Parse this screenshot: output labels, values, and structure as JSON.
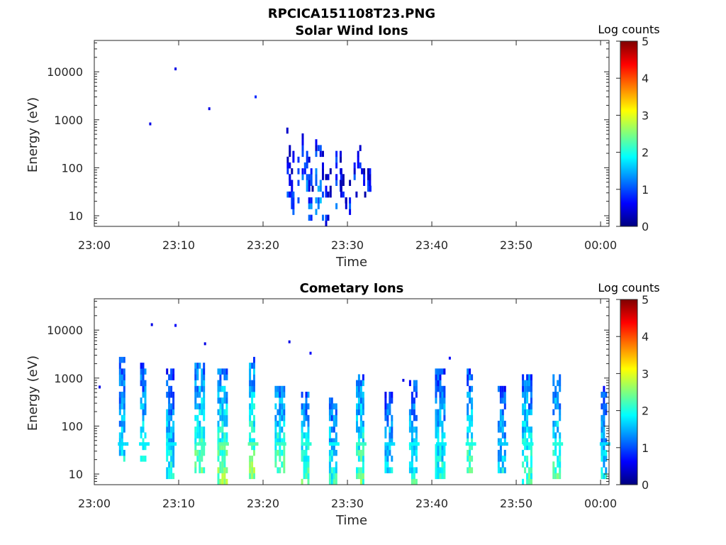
{
  "figure": {
    "title": "RPCICA151108T23.PNG"
  },
  "chart_data": [
    {
      "type": "heatmap",
      "title": "Solar Wind Ions",
      "xlabel": "Time",
      "ylabel": "Energy (eV)",
      "y_scale": "log",
      "ylim": [
        6,
        45000
      ],
      "xlim": [
        "23:00",
        "00:01"
      ],
      "x_ticks": [
        "23:00",
        "23:10",
        "23:20",
        "23:30",
        "23:40",
        "23:50",
        "00:00"
      ],
      "y_ticks": [
        "10",
        "100",
        "1000",
        "10000"
      ],
      "colorbar": {
        "label": "Log counts",
        "range": [
          0,
          5
        ],
        "ticks": [
          "0",
          "1",
          "2",
          "3",
          "4",
          "5"
        ],
        "colormap": "jet"
      },
      "bursts": [
        {
          "t": 23.0,
          "e": [
            580,
            600
          ],
          "c": 0.5
        },
        {
          "t": 23.05,
          "e": [
            17,
            290
          ],
          "c": 0.9
        },
        {
          "t": 23.3,
          "e": [
            12,
            95
          ],
          "c": 0.9
        },
        {
          "t": 23.6,
          "e": [
            12,
            310
          ],
          "c": 1.0
        },
        {
          "t": 24.2,
          "e": [
            12,
            280
          ],
          "c": 1.1
        },
        {
          "t": 24.7,
          "e": [
            13,
            520
          ],
          "c": 1.2
        },
        {
          "t": 25.1,
          "e": [
            17,
            520
          ],
          "c": 1.5
        },
        {
          "t": 25.6,
          "e": [
            6,
            200
          ],
          "c": 1.2
        },
        {
          "t": 26.0,
          "e": [
            30,
            40
          ],
          "c": 0.8
        },
        {
          "t": 26.3,
          "e": [
            11,
            440
          ],
          "c": 1.4
        },
        {
          "t": 26.7,
          "e": [
            11,
            420
          ],
          "c": 1.4
        },
        {
          "t": 27.1,
          "e": [
            8,
            300
          ],
          "c": 0.9
        },
        {
          "t": 27.6,
          "e": [
            6,
            120
          ],
          "c": 0.8
        },
        {
          "t": 28.0,
          "e": [
            6,
            90
          ],
          "c": 0.7
        },
        {
          "t": 28.4,
          "e": [
            20,
            290
          ],
          "c": 0.9
        },
        {
          "t": 28.7,
          "e": [
            12,
            460
          ],
          "c": 1.2
        },
        {
          "t": 29.2,
          "e": [
            30,
            230
          ],
          "c": 0.8
        },
        {
          "t": 29.4,
          "e": [
            17,
            110
          ],
          "c": 0.8
        },
        {
          "t": 29.7,
          "e": [
            17,
            22
          ],
          "c": 0.7
        },
        {
          "t": 29.85,
          "e": [
            12,
            22
          ],
          "c": 0.8
        },
        {
          "t": 30.3,
          "e": [
            12,
            60
          ],
          "c": 0.9
        },
        {
          "t": 30.85,
          "e": [
            30,
            300
          ],
          "c": 0.9
        },
        {
          "t": 31.2,
          "e": [
            19,
            30
          ],
          "c": 0.5
        },
        {
          "t": 31.4,
          "e": [
            90,
            420
          ],
          "c": 0.7
        },
        {
          "t": 31.85,
          "e": [
            28,
            100
          ],
          "c": 0.8
        },
        {
          "t": 32.1,
          "e": [
            17,
            30
          ],
          "c": 0.5
        },
        {
          "t": 32.6,
          "e": [
            30,
            100
          ],
          "c": 0.8
        },
        {
          "t": 32.8,
          "e": [
            18,
            110
          ],
          "c": 0.7
        }
      ],
      "sparse_points": [
        {
          "t": 9.5,
          "e": 11500,
          "c": 0.5
        },
        {
          "t": 13.5,
          "e": 1700,
          "c": 0.5
        },
        {
          "t": 19.0,
          "e": 3000,
          "c": 0.8
        },
        {
          "t": 6.5,
          "e": 820,
          "c": 0.5
        }
      ]
    },
    {
      "type": "heatmap",
      "title": "Cometary Ions",
      "xlabel": "Time",
      "ylabel": "Energy (eV)",
      "y_scale": "log",
      "ylim": [
        6,
        45000
      ],
      "xlim": [
        "23:00",
        "00:01"
      ],
      "x_ticks": [
        "23:00",
        "23:10",
        "23:20",
        "23:30",
        "23:40",
        "23:50",
        "00:00"
      ],
      "y_ticks": [
        "10",
        "100",
        "1000",
        "10000"
      ],
      "colorbar": {
        "label": "Log counts",
        "range": [
          0,
          5
        ],
        "ticks": [
          "0",
          "1",
          "2",
          "3",
          "4",
          "5"
        ],
        "colormap": "jet"
      },
      "bursts": [
        {
          "t": 3.3,
          "e": [
            16,
            3000
          ],
          "c": 1.9
        },
        {
          "t": 5.8,
          "e": [
            16,
            2000
          ],
          "c": 2.0
        },
        {
          "t": 9.0,
          "e": [
            8,
            1500
          ],
          "c": 2.0
        },
        {
          "t": 12.5,
          "e": [
            12,
            2000
          ],
          "c": 2.4
        },
        {
          "t": 15.2,
          "e": [
            6,
            1500
          ],
          "c": 2.6
        },
        {
          "t": 18.7,
          "e": [
            8,
            3000
          ],
          "c": 2.6
        },
        {
          "t": 22.0,
          "e": [
            12,
            700
          ],
          "c": 2.4
        },
        {
          "t": 25.0,
          "e": [
            6,
            500
          ],
          "c": 2.3
        },
        {
          "t": 28.3,
          "e": [
            6,
            450
          ],
          "c": 2.1
        },
        {
          "t": 31.5,
          "e": [
            6,
            1300
          ],
          "c": 2.4
        },
        {
          "t": 34.9,
          "e": [
            10,
            500
          ],
          "c": 1.9
        },
        {
          "t": 37.8,
          "e": [
            6,
            900
          ],
          "c": 2.1
        },
        {
          "t": 41.0,
          "e": [
            8,
            1700
          ],
          "c": 2.0
        },
        {
          "t": 44.5,
          "e": [
            12,
            1600
          ],
          "c": 2.2
        },
        {
          "t": 48.3,
          "e": [
            12,
            700
          ],
          "c": 1.8
        },
        {
          "t": 51.3,
          "e": [
            6,
            1200
          ],
          "c": 2.2
        },
        {
          "t": 54.8,
          "e": [
            6,
            1300
          ],
          "c": 2.3
        },
        {
          "t": 60.4,
          "e": [
            6,
            750
          ],
          "c": 1.9
        }
      ],
      "sparse_points": [
        {
          "t": 6.7,
          "e": 13000,
          "c": 0.5
        },
        {
          "t": 9.5,
          "e": 12500,
          "c": 0.6
        },
        {
          "t": 13.0,
          "e": 5200,
          "c": 0.5
        },
        {
          "t": 23.0,
          "e": 5700,
          "c": 0.5
        },
        {
          "t": 25.5,
          "e": 3300,
          "c": 0.6
        },
        {
          "t": 0.5,
          "e": 650,
          "c": 0.5
        },
        {
          "t": 42.0,
          "e": 2600,
          "c": 0.6
        },
        {
          "t": 36.5,
          "e": 900,
          "c": 0.5
        }
      ],
      "flat_band_eV": 40
    }
  ]
}
